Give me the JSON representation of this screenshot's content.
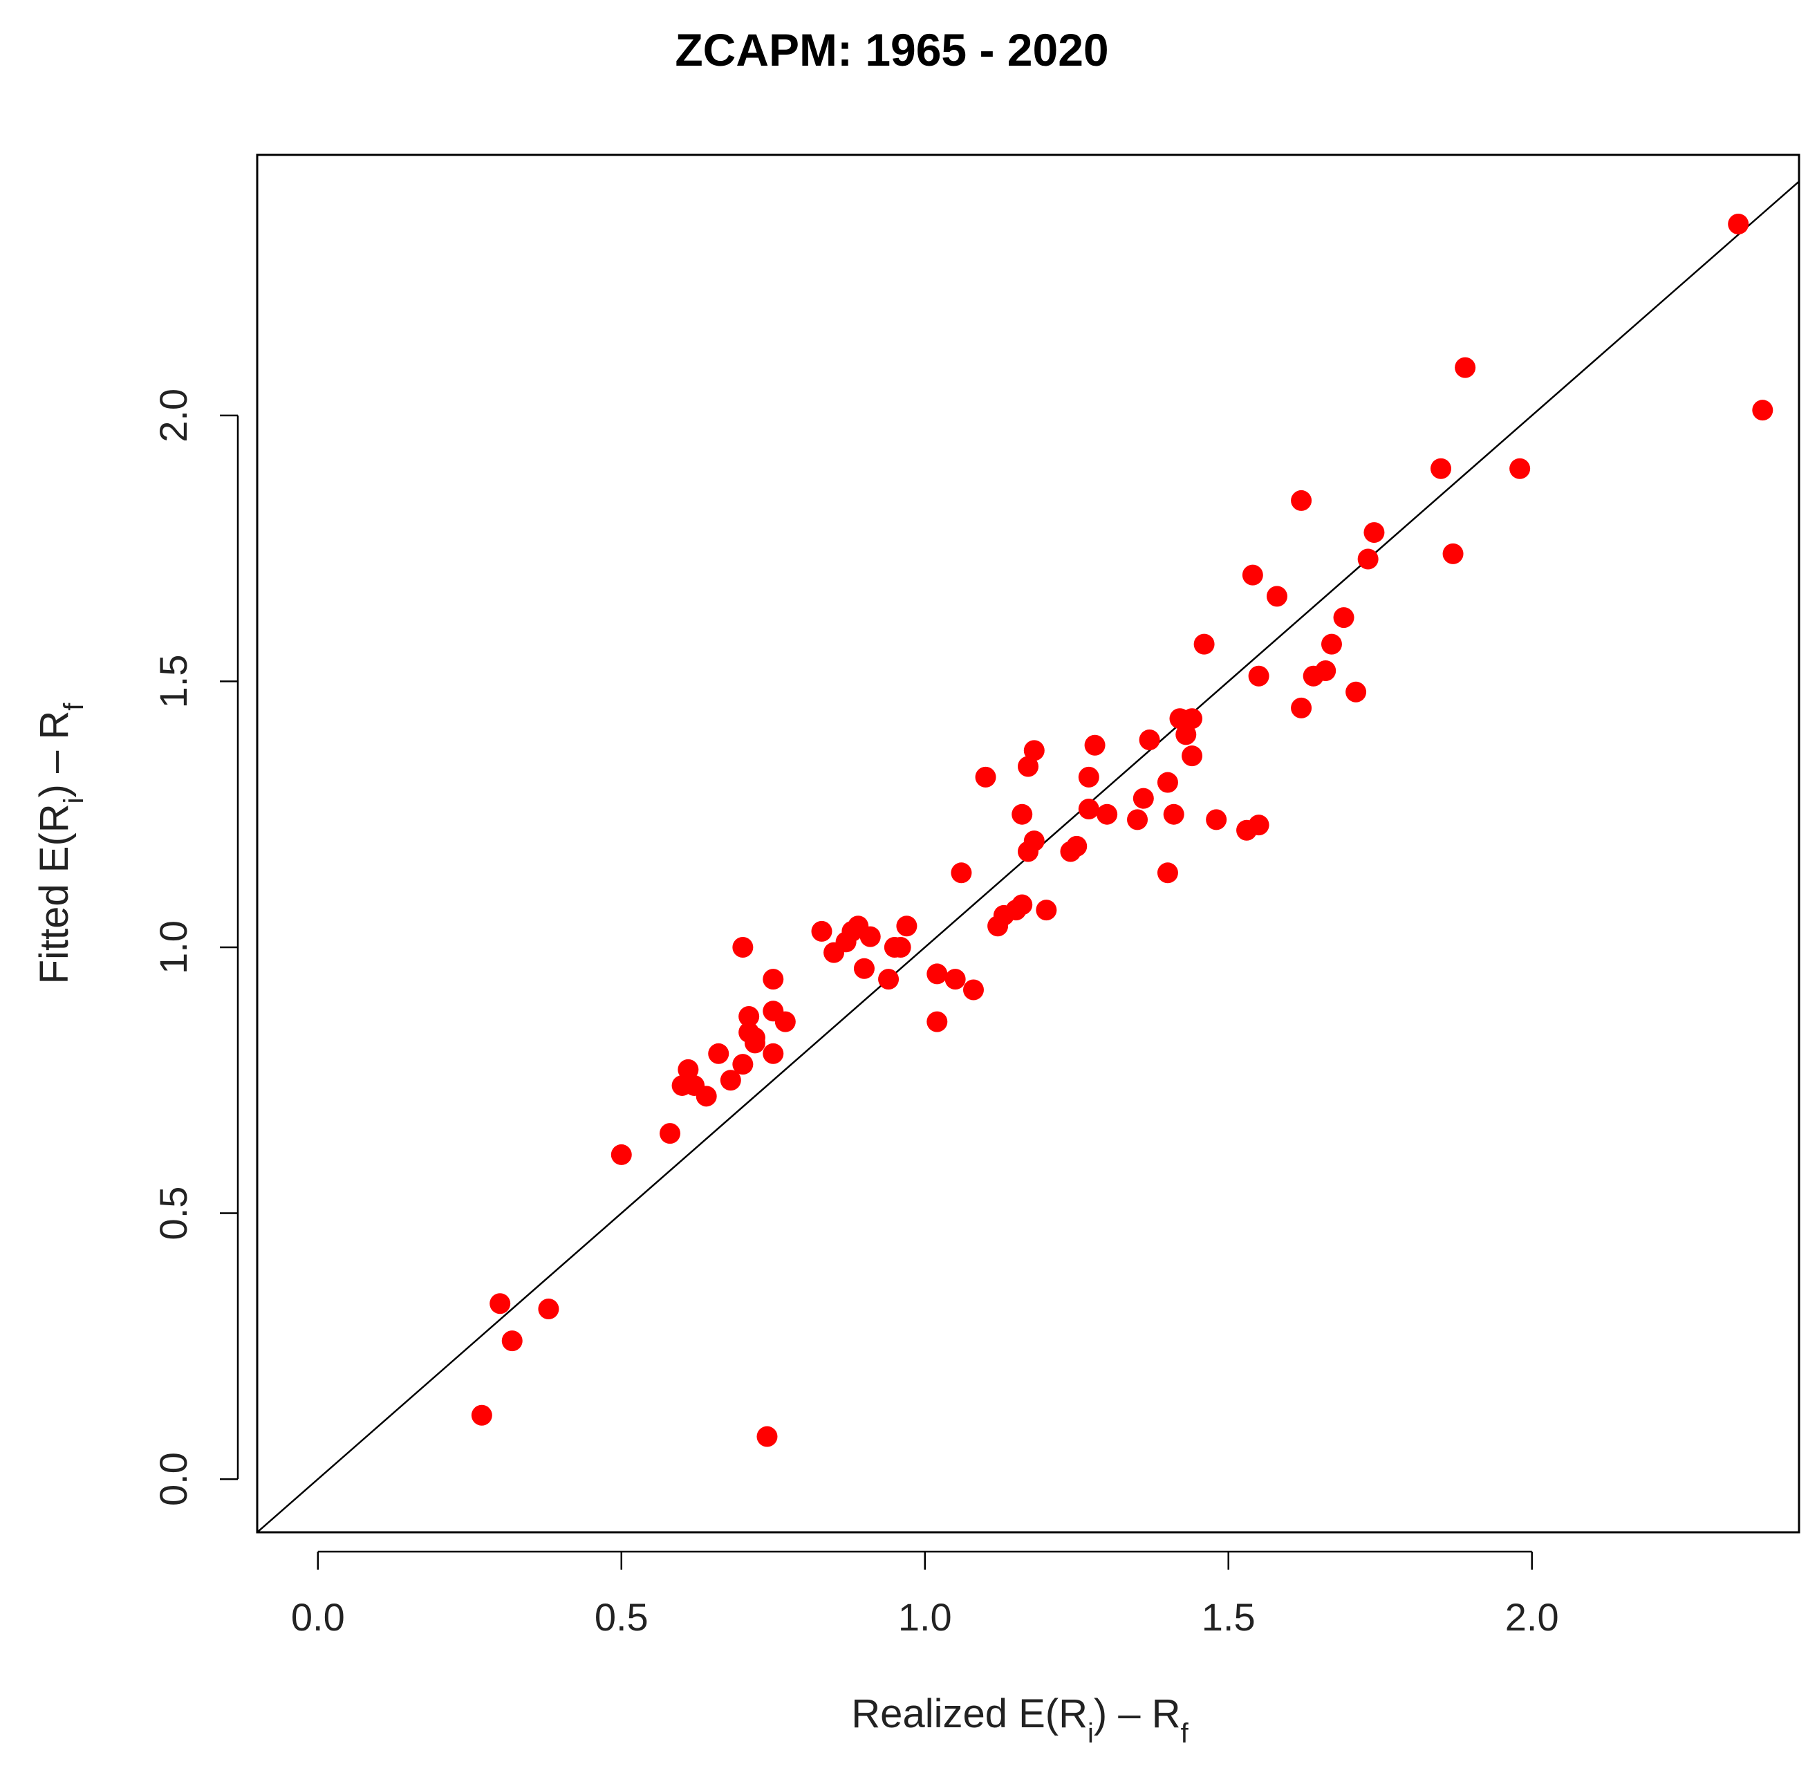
{
  "chart_data": {
    "type": "scatter",
    "title": "ZCAPM: 1965 - 2020",
    "xlabel": {
      "main": "Realized E(R",
      "sub1": "i",
      "mid": ") – R",
      "sub2": "f"
    },
    "ylabel": {
      "main": "Fitted E(R",
      "sub1": "i",
      "mid": ") – R",
      "sub2": "f"
    },
    "xlim": [
      -0.1,
      2.44
    ],
    "ylim": [
      -0.1,
      2.49
    ],
    "xticks": [
      0.0,
      0.5,
      1.0,
      1.5,
      2.0
    ],
    "xtick_labels": [
      "0.0",
      "0.5",
      "1.0",
      "1.5",
      "2.0"
    ],
    "yticks": [
      0.0,
      0.5,
      1.0,
      1.5,
      2.0
    ],
    "ytick_labels": [
      "0.0",
      "0.5",
      "1.0",
      "1.5",
      "2.0"
    ],
    "grid": false,
    "point_color": "#ff0000",
    "line_color": "#000000",
    "reference_line": {
      "type": "identity",
      "slope": 1,
      "intercept": 0
    },
    "points": [
      [
        0.27,
        0.12
      ],
      [
        0.3,
        0.33
      ],
      [
        0.32,
        0.26
      ],
      [
        0.38,
        0.32
      ],
      [
        0.5,
        0.61
      ],
      [
        0.58,
        0.65
      ],
      [
        0.6,
        0.74
      ],
      [
        0.61,
        0.77
      ],
      [
        0.62,
        0.74
      ],
      [
        0.64,
        0.72
      ],
      [
        0.66,
        0.8
      ],
      [
        0.68,
        0.75
      ],
      [
        0.7,
        0.78
      ],
      [
        0.7,
        1.0
      ],
      [
        0.71,
        0.87
      ],
      [
        0.71,
        0.84
      ],
      [
        0.72,
        0.82
      ],
      [
        0.72,
        0.83
      ],
      [
        0.74,
        0.08
      ],
      [
        0.75,
        0.88
      ],
      [
        0.75,
        0.94
      ],
      [
        0.75,
        0.8
      ],
      [
        0.77,
        0.86
      ],
      [
        0.83,
        1.03
      ],
      [
        0.85,
        0.99
      ],
      [
        0.87,
        1.01
      ],
      [
        0.88,
        1.03
      ],
      [
        0.89,
        1.04
      ],
      [
        0.9,
        0.96
      ],
      [
        0.91,
        1.02
      ],
      [
        0.94,
        0.94
      ],
      [
        0.95,
        1.0
      ],
      [
        0.96,
        1.0
      ],
      [
        0.97,
        1.04
      ],
      [
        1.02,
        0.86
      ],
      [
        1.02,
        0.95
      ],
      [
        1.05,
        0.94
      ],
      [
        1.06,
        1.14
      ],
      [
        1.08,
        0.92
      ],
      [
        1.1,
        1.32
      ],
      [
        1.12,
        1.04
      ],
      [
        1.13,
        1.06
      ],
      [
        1.15,
        1.07
      ],
      [
        1.16,
        1.08
      ],
      [
        1.16,
        1.25
      ],
      [
        1.17,
        1.18
      ],
      [
        1.17,
        1.34
      ],
      [
        1.18,
        1.2
      ],
      [
        1.18,
        1.37
      ],
      [
        1.2,
        1.07
      ],
      [
        1.24,
        1.18
      ],
      [
        1.25,
        1.19
      ],
      [
        1.27,
        1.32
      ],
      [
        1.27,
        1.26
      ],
      [
        1.28,
        1.38
      ],
      [
        1.3,
        1.25
      ],
      [
        1.35,
        1.24
      ],
      [
        1.36,
        1.28
      ],
      [
        1.37,
        1.39
      ],
      [
        1.4,
        1.31
      ],
      [
        1.4,
        1.14
      ],
      [
        1.41,
        1.25
      ],
      [
        1.42,
        1.43
      ],
      [
        1.43,
        1.4
      ],
      [
        1.44,
        1.43
      ],
      [
        1.44,
        1.36
      ],
      [
        1.46,
        1.57
      ],
      [
        1.48,
        1.24
      ],
      [
        1.53,
        1.22
      ],
      [
        1.54,
        1.7
      ],
      [
        1.55,
        1.51
      ],
      [
        1.55,
        1.23
      ],
      [
        1.58,
        1.66
      ],
      [
        1.62,
        1.84
      ],
      [
        1.62,
        1.45
      ],
      [
        1.64,
        1.51
      ],
      [
        1.66,
        1.52
      ],
      [
        1.67,
        1.57
      ],
      [
        1.69,
        1.62
      ],
      [
        1.71,
        1.48
      ],
      [
        1.73,
        1.73
      ],
      [
        1.74,
        1.78
      ],
      [
        1.85,
        1.9
      ],
      [
        1.87,
        1.74
      ],
      [
        1.89,
        2.09
      ],
      [
        1.98,
        1.9
      ],
      [
        2.34,
        2.36
      ],
      [
        2.38,
        2.01
      ]
    ]
  }
}
